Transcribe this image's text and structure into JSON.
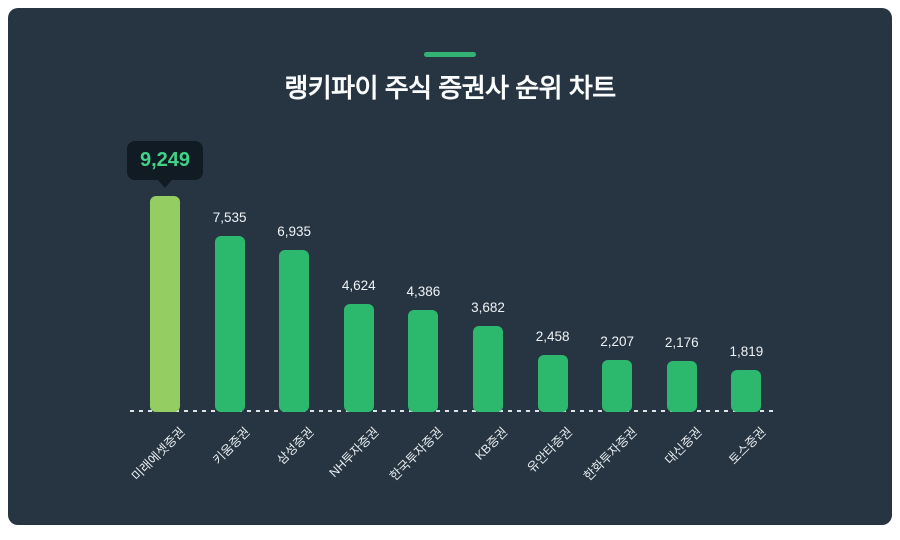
{
  "header": {
    "title": "랭키파이 주식 증권사 순위 차트"
  },
  "colors": {
    "page_bg": "#ffffff",
    "card_bg": "#273543",
    "accent_green": "#34b274",
    "bar_green": "#2db96d",
    "highlight_bar_green": "#94ce63",
    "tooltip_bg": "#111b23",
    "tooltip_text": "#41d287",
    "title_text": "#fcfdfd",
    "value_label_text": "#eef2f4",
    "axis_label_text": "#e8edef",
    "baseline": "#dde2e5"
  },
  "chart_data": {
    "type": "bar",
    "title": "랭키파이 주식 증권사 순위 차트",
    "categories": [
      "미래에셋증권",
      "키움증권",
      "삼성증권",
      "NH투자증권",
      "한국투자증권",
      "KB증권",
      "유안타증권",
      "한화투자증권",
      "대신증권",
      "토스증권"
    ],
    "values": [
      9249,
      7535,
      6935,
      4624,
      4386,
      3682,
      2458,
      2207,
      2176,
      1819
    ],
    "value_labels": [
      "9,249",
      "7,535",
      "6,935",
      "4,624",
      "4,386",
      "3,682",
      "2,458",
      "2,207",
      "2,176",
      "1,819"
    ],
    "highlight_index": 0,
    "tooltip": {
      "value": "9,249"
    },
    "xlabel": "",
    "ylabel": "",
    "ylim": [
      0,
      9249
    ],
    "grid": false,
    "legend": false,
    "baseline_style": "dotted",
    "x_label_rotation_deg": -45
  }
}
